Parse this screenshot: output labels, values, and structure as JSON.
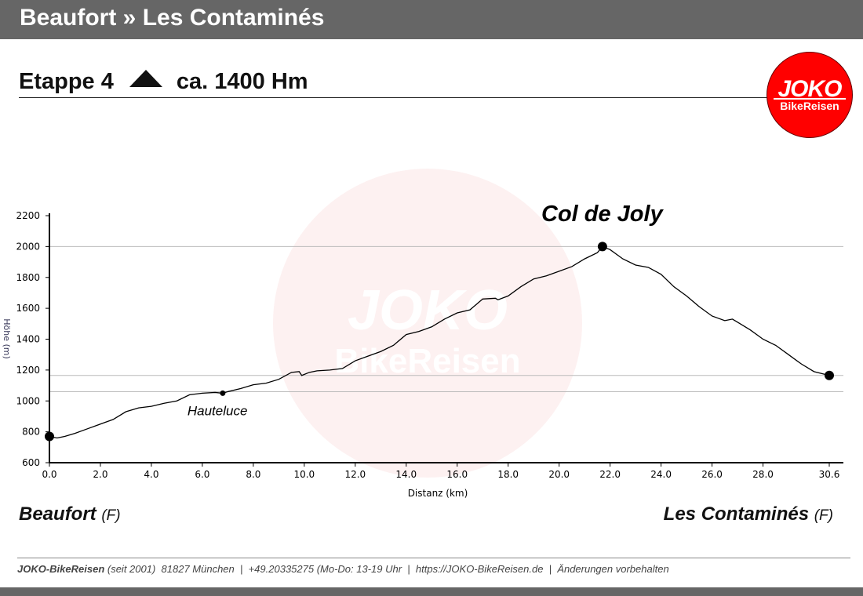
{
  "header": {
    "title": "Beaufort » Les Contaminés",
    "stage": "Etappe 4",
    "climb": "ca. 1400 Hm"
  },
  "logo": {
    "line1": "JOKO",
    "line2": "BikeReisen"
  },
  "colors": {
    "bar": "#666666",
    "logo": "#ff0000"
  },
  "chart_data": {
    "type": "line",
    "xlabel": "Distanz   (km)",
    "ylabel": "Höhe (m)",
    "xlim": [
      0,
      30.6
    ],
    "ylim": [
      600,
      2200
    ],
    "xticks": [
      "0.0",
      "2.0",
      "4.0",
      "6.0",
      "8.0",
      "10.0",
      "12.0",
      "14.0",
      "16.0",
      "18.0",
      "20.0",
      "22.0",
      "24.0",
      "26.0",
      "28.0",
      "30.6"
    ],
    "xtick_values": [
      0,
      2,
      4,
      6,
      8,
      10,
      12,
      14,
      16,
      18,
      20,
      22,
      24,
      26,
      28,
      30.6
    ],
    "yticks": [
      600,
      800,
      1000,
      1200,
      1400,
      1600,
      1800,
      2000,
      2200
    ],
    "reference_lines": [
      2000,
      1165,
      1060
    ],
    "profile": [
      [
        0,
        770
      ],
      [
        0.3,
        760
      ],
      [
        0.6,
        770
      ],
      [
        1,
        790
      ],
      [
        1.5,
        820
      ],
      [
        2,
        850
      ],
      [
        2.5,
        880
      ],
      [
        3,
        930
      ],
      [
        3.5,
        955
      ],
      [
        4,
        965
      ],
      [
        4.5,
        985
      ],
      [
        5,
        1000
      ],
      [
        5.5,
        1040
      ],
      [
        6,
        1050
      ],
      [
        6.5,
        1055
      ],
      [
        6.8,
        1050
      ],
      [
        7,
        1060
      ],
      [
        7.5,
        1080
      ],
      [
        8,
        1105
      ],
      [
        8.5,
        1115
      ],
      [
        9,
        1140
      ],
      [
        9.5,
        1185
      ],
      [
        9.8,
        1190
      ],
      [
        9.9,
        1165
      ],
      [
        10.2,
        1185
      ],
      [
        10.5,
        1195
      ],
      [
        11,
        1200
      ],
      [
        11.5,
        1210
      ],
      [
        12,
        1260
      ],
      [
        12.5,
        1290
      ],
      [
        13,
        1320
      ],
      [
        13.5,
        1360
      ],
      [
        14,
        1430
      ],
      [
        14.5,
        1450
      ],
      [
        15,
        1480
      ],
      [
        15.5,
        1530
      ],
      [
        16,
        1570
      ],
      [
        16.5,
        1590
      ],
      [
        17,
        1660
      ],
      [
        17.5,
        1665
      ],
      [
        17.6,
        1655
      ],
      [
        18,
        1680
      ],
      [
        18.5,
        1740
      ],
      [
        19,
        1790
      ],
      [
        19.5,
        1810
      ],
      [
        20,
        1840
      ],
      [
        20.5,
        1870
      ],
      [
        21,
        1920
      ],
      [
        21.5,
        1960
      ],
      [
        21.7,
        2000
      ],
      [
        22,
        1980
      ],
      [
        22.5,
        1920
      ],
      [
        23,
        1880
      ],
      [
        23.5,
        1865
      ],
      [
        24,
        1820
      ],
      [
        24.5,
        1740
      ],
      [
        25,
        1680
      ],
      [
        25.5,
        1610
      ],
      [
        26,
        1550
      ],
      [
        26.5,
        1520
      ],
      [
        26.8,
        1530
      ],
      [
        27,
        1510
      ],
      [
        27.5,
        1460
      ],
      [
        28,
        1400
      ],
      [
        28.5,
        1360
      ],
      [
        29,
        1300
      ],
      [
        29.5,
        1240
      ],
      [
        30,
        1190
      ],
      [
        30.6,
        1165
      ]
    ],
    "points": [
      {
        "name": "start",
        "x": 0,
        "y": 770,
        "label": ""
      },
      {
        "name": "hauteluce",
        "x": 6.8,
        "y": 1050,
        "label": "Hauteluce"
      },
      {
        "name": "col",
        "x": 21.7,
        "y": 2000,
        "label": "Col de Joly"
      },
      {
        "name": "end",
        "x": 30.6,
        "y": 1165,
        "label": ""
      }
    ]
  },
  "places": {
    "start": "Beaufort",
    "start_country": "(F)",
    "end": "Les Contaminés",
    "end_country": "(F)"
  },
  "footer": {
    "brand": "JOKO-BikeReisen",
    "text": " (seit 2001)  81827 München  |  +49.20335275 (Mo-Do: 13-19 Uhr  |  https://JOKO-BikeReisen.de  |  Änderungen vorbehalten"
  }
}
